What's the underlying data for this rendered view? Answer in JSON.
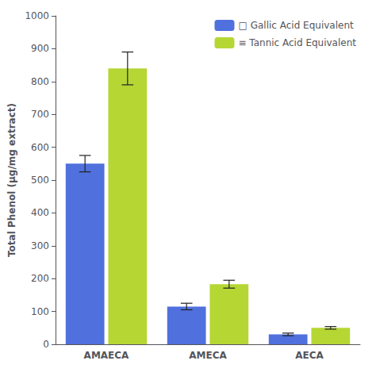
{
  "chart_data": {
    "type": "bar",
    "ylabel": "Total Phenol (µg/mg extract)",
    "categories": [
      "AMAECA",
      "AMECA",
      "AECA"
    ],
    "series": [
      {
        "name": "□ Gallic Acid Equivalent",
        "values": [
          550,
          115,
          30
        ],
        "errors": [
          25,
          10,
          4
        ]
      },
      {
        "name": "≡ Tannic Acid Equivalent",
        "values": [
          840,
          183,
          50
        ],
        "errors": [
          50,
          12,
          4
        ]
      }
    ],
    "ylim": [
      0,
      1000
    ],
    "yticks": [
      0,
      100,
      200,
      300,
      400,
      500,
      600,
      700,
      800,
      900,
      1000
    ],
    "grid": false,
    "legend": "upper right"
  }
}
